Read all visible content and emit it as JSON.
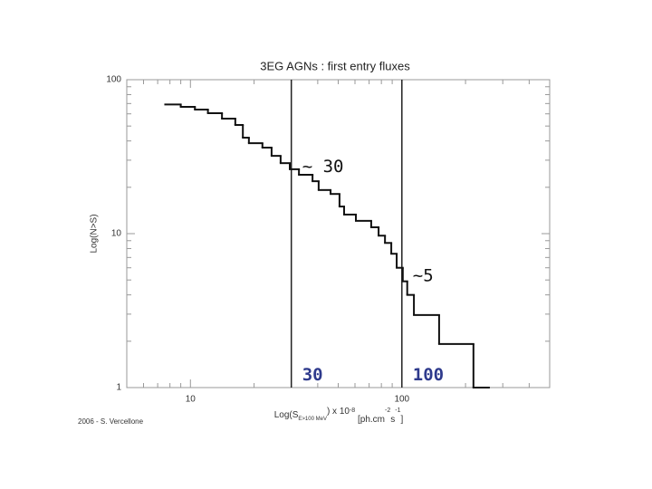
{
  "chart_data": {
    "type": "step",
    "title": "3EG AGNs : first entry fluxes",
    "y_label": "Log(N>S)",
    "x_label_parts": [
      "Log(S",
      "E>100 MeV",
      ") x 10",
      "-8",
      " [ph.cm",
      "-2",
      "s",
      "-1",
      "]"
    ],
    "credit": "2006 - S. Vercellone",
    "log_x": true,
    "log_y": true,
    "xlim": [
      5,
      500
    ],
    "ylim": [
      1,
      100
    ],
    "xticks": [
      10,
      100
    ],
    "yticks": [
      1,
      10,
      100
    ],
    "xminorticks": [
      6,
      7,
      8,
      9,
      20,
      30,
      40,
      50,
      60,
      70,
      80,
      90,
      200,
      300,
      400
    ],
    "yminorticks": [
      2,
      3,
      4,
      5,
      6,
      7,
      8,
      9,
      20,
      30,
      40,
      50,
      60,
      70,
      80,
      90
    ],
    "color": "#111111",
    "x": [
      7.6,
      9.0,
      10.5,
      12.1,
      14.1,
      16.3,
      17.7,
      18.9,
      21.9,
      24.2,
      26.7,
      29.5,
      32.6,
      37.8,
      40.4,
      46.0,
      50.7,
      53.3,
      60.6,
      71.6,
      77.6,
      83.2,
      89.1,
      94.5,
      101,
      106,
      114,
      150,
      218,
      258
    ],
    "y": [
      69,
      66.6,
      64,
      60.6,
      55.9,
      50.8,
      42.0,
      38.7,
      36.2,
      32.0,
      28.7,
      26.2,
      24.1,
      21.9,
      19.2,
      18.1,
      15.0,
      13.3,
      12.1,
      11.0,
      9.7,
      8.7,
      7.4,
      6.0,
      4.9,
      4.0,
      2.96,
      1.92,
      1,
      1
    ],
    "vlines": [
      30,
      100
    ],
    "annotations": [
      {
        "text": "~ 30",
        "x": 30,
        "y": 27
      },
      {
        "text": "~5",
        "x": 100,
        "y": 5.3
      },
      {
        "text": "30",
        "x": 30,
        "y": 1.2,
        "style": "blue"
      },
      {
        "text": "100",
        "x": 100,
        "y": 1.2,
        "style": "blue"
      }
    ]
  }
}
